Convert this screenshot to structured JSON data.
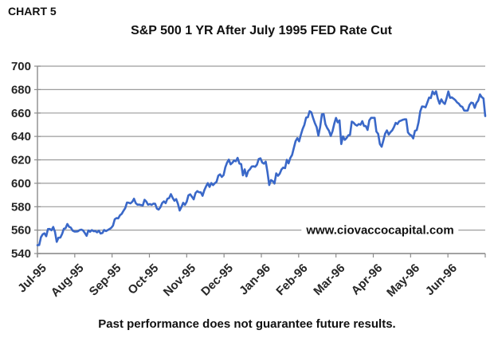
{
  "header": {
    "label": "CHART 5"
  },
  "watermark": {
    "text": "www.ciovaccocapital.com"
  },
  "footer": {
    "caption": "Past performance does not guarantee future results."
  },
  "colors": {
    "line": "#3a68c8",
    "gridline": "#9c9c9c",
    "axis": "#8c8c8c",
    "text": "#262626"
  },
  "chart_data": {
    "type": "line",
    "title": "S&P 500 1 YR After July 1995 FED Rate Cut",
    "xlabel": "",
    "ylabel": "",
    "ylim": [
      540,
      700
    ],
    "y_tick_interval": 20,
    "y_ticks": [
      700,
      680,
      660,
      640,
      620,
      600,
      580,
      560,
      540
    ],
    "x_tick_labels": [
      "Jul-95",
      "Aug-95",
      "Sep-95",
      "Oct-95",
      "Nov-95",
      "Dec-95",
      "Jan-96",
      "Feb-96",
      "Mar-96",
      "Apr-96",
      "May-96",
      "Jun-96"
    ],
    "grid": "horizontal",
    "legend": "none",
    "series": [
      {
        "name": "S&P 500",
        "frequency": "daily-trading-days",
        "start_date": "1995-07-03",
        "end_date": "1996-07-05",
        "values": [
          547.1,
          547.3,
          553.9,
          556.4,
          557.2,
          554.8,
          560.9,
          561.0,
          559.9,
          562.7,
          558.5,
          550.0,
          553.5,
          553.6,
          556.6,
          561.1,
          561.6,
          565.2,
          562.9,
          562.1,
          559.6,
          558.8,
          558.8,
          558.9,
          560.0,
          560.4,
          559.7,
          557.5,
          555.1,
          559.7,
          558.6,
          560.0,
          559.0,
          559.2,
          558.1,
          559.5,
          557.1,
          557.5,
          560.1,
          559.1,
          560.0,
          560.9,
          561.9,
          563.8,
          569.2,
          570.2,
          570.0,
          572.7,
          573.9,
          576.5,
          578.8,
          583.6,
          583.4,
          582.8,
          584.2,
          586.8,
          583.0,
          581.7,
          581.8,
          581.4,
          581.0,
          585.9,
          584.4,
          581.7,
          582.3,
          581.5,
          582.6,
          582.5,
          578.4,
          577.5,
          579.5,
          583.1,
          584.5,
          583.0,
          586.8,
          587.4,
          590.7,
          587.5,
          585.1,
          586.5,
          582.5,
          576.7,
          579.7,
          583.3,
          581.5,
          584.2,
          589.7,
          590.6,
          588.5,
          586.3,
          591.7,
          593.3,
          592.3,
          592.3,
          589.3,
          594.0,
          597.3,
          600.1,
          596.9,
          600.2,
          598.4,
          600.0,
          601.3,
          606.5,
          607.6,
          605.4,
          607.0,
          613.7,
          617.7,
          620.2,
          616.2,
          617.5,
          619.5,
          618.8,
          621.7,
          616.9,
          616.3,
          606.8,
          611.9,
          605.9,
          610.5,
          612.0,
          614.3,
          614.5,
          614.1,
          615.9,
          620.7,
          621.3,
          617.7,
          616.7,
          618.5,
          609.5,
          598.5,
          602.7,
          601.8,
          599.8,
          608.4,
          606.4,
          608.2,
          611.8,
          613.4,
          612.9,
          620.0,
          617.0,
          621.6,
          624.2,
          630.2,
          636.0,
          638.5,
          635.8,
          641.4,
          646.3,
          649.9,
          656.1,
          656.4,
          661.5,
          660.5,
          655.6,
          651.3,
          648.0,
          640.7,
          648.1,
          658.9,
          659.1,
          650.5,
          647.2,
          644.8,
          640.4,
          644.4,
          650.8,
          655.8,
          652.0,
          653.7,
          633.5,
          640.0,
          637.1,
          638.6,
          640.9,
          641.4,
          652.7,
          651.7,
          650.0,
          649.2,
          650.6,
          650.0,
          653.0,
          648.9,
          648.9,
          645.5,
          653.7,
          655.9,
          655.9,
          655.9,
          644.2,
          642.2,
          633.5,
          631.2,
          636.7,
          642.5,
          645.1,
          641.6,
          643.6,
          645.1,
          647.9,
          651.6,
          650.6,
          652.9,
          653.5,
          654.2,
          654.6,
          654.6,
          643.4,
          641.6,
          640.8,
          638.3,
          644.8,
          645.4,
          652.1,
          661.5,
          665.6,
          665.4,
          664.9,
          668.9,
          673.2,
          672.8,
          678.4,
          676.0,
          678.5,
          672.2,
          667.9,
          671.7,
          669.1,
          667.7,
          672.6,
          678.4,
          673.0,
          673.3,
          672.2,
          671.0,
          669.0,
          667.9,
          665.9,
          665.2,
          662.1,
          662.0,
          662.1,
          666.8,
          668.9,
          668.5,
          664.4,
          668.6,
          670.6,
          675.9,
          673.6,
          672.4,
          657.4
        ]
      }
    ]
  }
}
